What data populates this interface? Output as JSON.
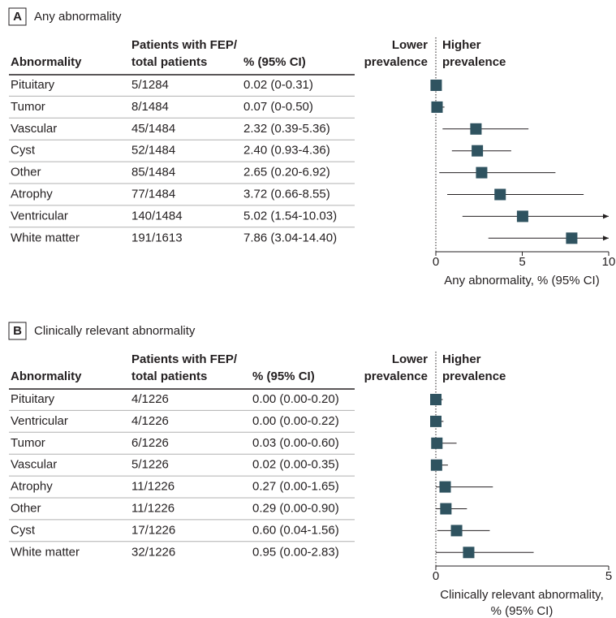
{
  "chart_data": [
    {
      "type": "forest",
      "label": "A",
      "title": "Any abnormality",
      "category_header": "Abnormality",
      "n_header": [
        "Patients with FEP/",
        "total patients"
      ],
      "ci_header": "% (95% CI)",
      "lower_label": [
        "Lower",
        "prevalence"
      ],
      "higher_label": [
        "Higher",
        "prevalence"
      ],
      "categories": [
        "Pituitary",
        "Tumor",
        "Vascular",
        "Cyst",
        "Other",
        "Atrophy",
        "Ventricular",
        "White matter"
      ],
      "patients": [
        "5/1284",
        "8/1484",
        "45/1484",
        "52/1484",
        "85/1484",
        "77/1484",
        "140/1484",
        "191/1613"
      ],
      "values": [
        0.02,
        0.07,
        2.32,
        2.4,
        2.65,
        3.72,
        5.02,
        7.86
      ],
      "ci_low": [
        0,
        0,
        0.39,
        0.93,
        0.2,
        0.66,
        1.54,
        3.04
      ],
      "ci_high": [
        0.31,
        0.5,
        5.36,
        4.36,
        6.92,
        8.55,
        10.03,
        14.4
      ],
      "value_labels": [
        "0.02 (0-0.31)",
        "0.07 (0-0.50)",
        "2.32 (0.39-5.36)",
        "2.40 (0.93-4.36)",
        "2.65 (0.20-6.92)",
        "3.72 (0.66-8.55)",
        "5.02 (1.54-10.03)",
        "7.86 (3.04-14.40)"
      ],
      "color": "#2f5360",
      "xlim": [
        0,
        10
      ],
      "xticks": [
        0,
        5,
        10
      ],
      "xlabel": [
        "Any abnormality, % (95% CI)"
      ]
    },
    {
      "type": "forest",
      "label": "B",
      "title": "Clinically relevant abnormality",
      "category_header": "Abnormality",
      "n_header": [
        "Patients with FEP/",
        "total patients"
      ],
      "ci_header": "% (95% CI)",
      "lower_label": [
        "Lower",
        "prevalence"
      ],
      "higher_label": [
        "Higher",
        "prevalence"
      ],
      "categories": [
        "Pituitary",
        "Ventricular",
        "Tumor",
        "Vascular",
        "Atrophy",
        "Other",
        "Cyst",
        "White matter"
      ],
      "patients": [
        "4/1226",
        "4/1226",
        "6/1226",
        "5/1226",
        "11/1226",
        "11/1226",
        "17/1226",
        "32/1226"
      ],
      "values": [
        0.0,
        0.0,
        0.03,
        0.02,
        0.27,
        0.29,
        0.6,
        0.95
      ],
      "ci_low": [
        0.0,
        0.0,
        0.0,
        0.0,
        0.0,
        0.0,
        0.04,
        0.0
      ],
      "ci_high": [
        0.2,
        0.22,
        0.6,
        0.35,
        1.65,
        0.9,
        1.56,
        2.83
      ],
      "value_labels": [
        "0.00 (0.00-0.20)",
        "0.00 (0.00-0.22)",
        "0.03 (0.00-0.60)",
        "0.02 (0.00-0.35)",
        "0.27 (0.00-1.65)",
        "0.29 (0.00-0.90)",
        "0.60 (0.04-1.56)",
        "0.95 (0.00-2.83)"
      ],
      "color": "#2f5360",
      "xlim": [
        0,
        5
      ],
      "xticks": [
        0,
        5
      ],
      "xlabel": [
        "Clinically relevant abnormality,",
        "% (95% CI)"
      ]
    }
  ]
}
